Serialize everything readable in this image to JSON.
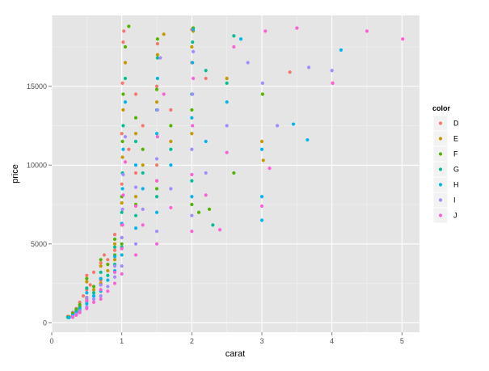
{
  "chart_data": {
    "type": "scatter",
    "title": "",
    "xlabel": "carat",
    "ylabel": "price",
    "xlim": [
      0,
      5.25
    ],
    "ylim": [
      -600,
      19500
    ],
    "x_ticks": [
      0,
      1,
      2,
      3,
      4,
      5
    ],
    "y_ticks": [
      0,
      5000,
      10000,
      15000
    ],
    "grid": true,
    "legend": {
      "title": "color",
      "position": "right"
    },
    "series": [
      {
        "name": "D",
        "color": "#F8766D",
        "points": [
          [
            0.23,
            400
          ],
          [
            0.3,
            650
          ],
          [
            0.35,
            900
          ],
          [
            0.4,
            1300
          ],
          [
            0.45,
            1700
          ],
          [
            0.5,
            2100
          ],
          [
            0.5,
            3000
          ],
          [
            0.55,
            2400
          ],
          [
            0.6,
            3200
          ],
          [
            0.7,
            3800
          ],
          [
            0.7,
            2700
          ],
          [
            0.75,
            4300
          ],
          [
            0.8,
            4000
          ],
          [
            0.9,
            4600
          ],
          [
            0.9,
            5600
          ],
          [
            1.0,
            6200
          ],
          [
            1.0,
            8800
          ],
          [
            1.0,
            12000
          ],
          [
            1.01,
            15200
          ],
          [
            1.02,
            17800
          ],
          [
            1.03,
            18500
          ],
          [
            1.05,
            16500
          ],
          [
            1.1,
            11000
          ],
          [
            1.2,
            9500
          ],
          [
            1.2,
            14500
          ],
          [
            1.3,
            12500
          ],
          [
            1.5,
            10000
          ],
          [
            1.5,
            15000
          ],
          [
            1.51,
            17700
          ],
          [
            1.7,
            13500
          ],
          [
            2.0,
            16500
          ],
          [
            2.0,
            18600
          ],
          [
            2.2,
            15500
          ],
          [
            3.4,
            15900
          ],
          [
            4.01,
            15200
          ]
        ]
      },
      {
        "name": "E",
        "color": "#C49A00",
        "points": [
          [
            0.25,
            380
          ],
          [
            0.3,
            550
          ],
          [
            0.35,
            750
          ],
          [
            0.4,
            1050
          ],
          [
            0.5,
            1500
          ],
          [
            0.5,
            2600
          ],
          [
            0.6,
            2100
          ],
          [
            0.7,
            2500
          ],
          [
            0.7,
            3600
          ],
          [
            0.8,
            3300
          ],
          [
            0.9,
            4000
          ],
          [
            0.9,
            5000
          ],
          [
            1.0,
            5400
          ],
          [
            1.0,
            7600
          ],
          [
            1.01,
            10500
          ],
          [
            1.02,
            13500
          ],
          [
            1.05,
            16500
          ],
          [
            1.2,
            8000
          ],
          [
            1.2,
            12000
          ],
          [
            1.3,
            10000
          ],
          [
            1.5,
            9000
          ],
          [
            1.5,
            14000
          ],
          [
            1.51,
            17000
          ],
          [
            1.6,
            18300
          ],
          [
            1.7,
            11500
          ],
          [
            2.0,
            12000
          ],
          [
            2.0,
            17500
          ],
          [
            2.02,
            18500
          ],
          [
            2.5,
            15500
          ],
          [
            3.0,
            11500
          ],
          [
            3.02,
            10300
          ]
        ]
      },
      {
        "name": "F",
        "color": "#53B400",
        "points": [
          [
            0.23,
            350
          ],
          [
            0.3,
            600
          ],
          [
            0.35,
            850
          ],
          [
            0.4,
            1150
          ],
          [
            0.5,
            1600
          ],
          [
            0.5,
            2800
          ],
          [
            0.6,
            2300
          ],
          [
            0.7,
            2800
          ],
          [
            0.7,
            4000
          ],
          [
            0.8,
            3700
          ],
          [
            0.9,
            4300
          ],
          [
            0.9,
            5300
          ],
          [
            1.0,
            5000
          ],
          [
            1.0,
            8000
          ],
          [
            1.01,
            11500
          ],
          [
            1.02,
            14500
          ],
          [
            1.05,
            17500
          ],
          [
            1.1,
            18800
          ],
          [
            1.2,
            7500
          ],
          [
            1.2,
            13000
          ],
          [
            1.3,
            11000
          ],
          [
            1.5,
            8500
          ],
          [
            1.5,
            14800
          ],
          [
            1.51,
            18000
          ],
          [
            1.7,
            12500
          ],
          [
            2.0,
            7500
          ],
          [
            2.0,
            13500
          ],
          [
            2.02,
            18700
          ],
          [
            2.1,
            7000
          ],
          [
            2.25,
            7200
          ],
          [
            2.6,
            9500
          ],
          [
            3.01,
            14500
          ]
        ]
      },
      {
        "name": "G",
        "color": "#00C094",
        "points": [
          [
            0.23,
            340
          ],
          [
            0.3,
            500
          ],
          [
            0.35,
            700
          ],
          [
            0.4,
            950
          ],
          [
            0.5,
            1350
          ],
          [
            0.5,
            2200
          ],
          [
            0.6,
            1900
          ],
          [
            0.7,
            2400
          ],
          [
            0.7,
            3200
          ],
          [
            0.8,
            3000
          ],
          [
            0.9,
            3700
          ],
          [
            0.9,
            4800
          ],
          [
            1.0,
            4800
          ],
          [
            1.0,
            7000
          ],
          [
            1.01,
            9500
          ],
          [
            1.02,
            12500
          ],
          [
            1.05,
            15500
          ],
          [
            1.2,
            6800
          ],
          [
            1.2,
            11500
          ],
          [
            1.3,
            9500
          ],
          [
            1.5,
            8000
          ],
          [
            1.5,
            13500
          ],
          [
            1.51,
            16800
          ],
          [
            1.7,
            11000
          ],
          [
            2.0,
            9000
          ],
          [
            2.0,
            14500
          ],
          [
            2.01,
            17800
          ],
          [
            2.2,
            16000
          ],
          [
            2.3,
            6200
          ],
          [
            2.5,
            15200
          ],
          [
            2.6,
            18200
          ]
        ]
      },
      {
        "name": "H",
        "color": "#00B6EB",
        "points": [
          [
            0.25,
            330
          ],
          [
            0.3,
            450
          ],
          [
            0.35,
            620
          ],
          [
            0.4,
            850
          ],
          [
            0.5,
            1200
          ],
          [
            0.5,
            1900
          ],
          [
            0.6,
            1700
          ],
          [
            0.7,
            2000
          ],
          [
            0.7,
            2800
          ],
          [
            0.8,
            2700
          ],
          [
            0.9,
            3300
          ],
          [
            0.9,
            4200
          ],
          [
            1.0,
            4300
          ],
          [
            1.0,
            6300
          ],
          [
            1.01,
            8500
          ],
          [
            1.02,
            11000
          ],
          [
            1.05,
            14000
          ],
          [
            1.2,
            6000
          ],
          [
            1.2,
            10000
          ],
          [
            1.3,
            8500
          ],
          [
            1.5,
            7000
          ],
          [
            1.5,
            12000
          ],
          [
            1.51,
            15500
          ],
          [
            1.7,
            10000
          ],
          [
            2.0,
            8000
          ],
          [
            2.0,
            13000
          ],
          [
            2.01,
            16500
          ],
          [
            2.02,
            18600
          ],
          [
            2.2,
            11500
          ],
          [
            2.5,
            14000
          ],
          [
            2.7,
            18000
          ],
          [
            3.0,
            6500
          ],
          [
            3.0,
            8000
          ],
          [
            3.0,
            11000
          ],
          [
            3.45,
            12600
          ],
          [
            3.65,
            11600
          ],
          [
            4.13,
            17300
          ]
        ]
      },
      {
        "name": "I",
        "color": "#A58AFF",
        "points": [
          [
            0.3,
            400
          ],
          [
            0.35,
            550
          ],
          [
            0.4,
            750
          ],
          [
            0.5,
            1000
          ],
          [
            0.5,
            1600
          ],
          [
            0.6,
            1500
          ],
          [
            0.7,
            1700
          ],
          [
            0.7,
            2400
          ],
          [
            0.8,
            2300
          ],
          [
            0.9,
            2900
          ],
          [
            0.9,
            3600
          ],
          [
            1.0,
            3600
          ],
          [
            1.0,
            5400
          ],
          [
            1.01,
            7200
          ],
          [
            1.02,
            9400
          ],
          [
            1.05,
            11800
          ],
          [
            1.2,
            5000
          ],
          [
            1.2,
            8600
          ],
          [
            1.3,
            7200
          ],
          [
            1.5,
            5800
          ],
          [
            1.5,
            10400
          ],
          [
            1.51,
            13500
          ],
          [
            1.55,
            16800
          ],
          [
            1.7,
            8500
          ],
          [
            2.0,
            6800
          ],
          [
            2.0,
            11000
          ],
          [
            2.01,
            14500
          ],
          [
            2.02,
            17200
          ],
          [
            2.2,
            9500
          ],
          [
            2.5,
            12500
          ],
          [
            2.8,
            16500
          ],
          [
            3.01,
            15200
          ],
          [
            3.22,
            12500
          ],
          [
            3.67,
            16200
          ],
          [
            4.0,
            16000
          ]
        ]
      },
      {
        "name": "J",
        "color": "#FB61D7",
        "points": [
          [
            0.3,
            350
          ],
          [
            0.35,
            480
          ],
          [
            0.4,
            650
          ],
          [
            0.5,
            900
          ],
          [
            0.5,
            1400
          ],
          [
            0.6,
            1300
          ],
          [
            0.7,
            1500
          ],
          [
            0.7,
            2100
          ],
          [
            0.8,
            2000
          ],
          [
            0.9,
            2500
          ],
          [
            0.9,
            3200
          ],
          [
            1.0,
            3100
          ],
          [
            1.0,
            4700
          ],
          [
            1.01,
            6200
          ],
          [
            1.02,
            8100
          ],
          [
            1.05,
            10200
          ],
          [
            1.2,
            4300
          ],
          [
            1.2,
            7400
          ],
          [
            1.3,
            6200
          ],
          [
            1.5,
            5000
          ],
          [
            1.5,
            9000
          ],
          [
            1.51,
            11800
          ],
          [
            1.6,
            14500
          ],
          [
            1.7,
            7300
          ],
          [
            2.0,
            5800
          ],
          [
            2.0,
            9400
          ],
          [
            2.01,
            12500
          ],
          [
            2.02,
            15500
          ],
          [
            2.2,
            8100
          ],
          [
            2.4,
            5900
          ],
          [
            2.5,
            10800
          ],
          [
            2.6,
            17500
          ],
          [
            3.0,
            7400
          ],
          [
            3.05,
            18500
          ],
          [
            3.11,
            9800
          ],
          [
            3.5,
            18700
          ],
          [
            4.01,
            15200
          ],
          [
            4.5,
            18500
          ],
          [
            5.01,
            18000
          ]
        ]
      }
    ]
  }
}
